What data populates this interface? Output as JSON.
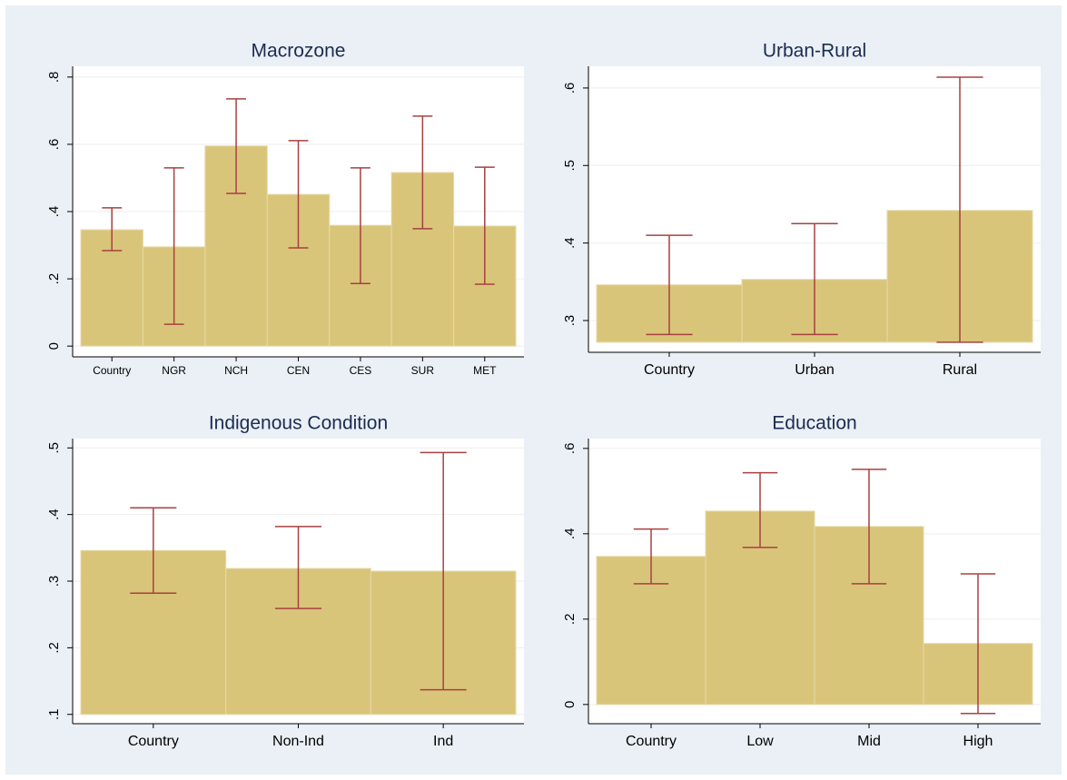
{
  "chart_data": [
    {
      "type": "bar",
      "title": "Macrozone",
      "categories": [
        "Country",
        "NGR",
        "NCH",
        "CEN",
        "CES",
        "SUR",
        "MET"
      ],
      "values": [
        0.346,
        0.295,
        0.595,
        0.451,
        0.359,
        0.516,
        0.357
      ],
      "ci_low": [
        0.284,
        0.065,
        0.454,
        0.292,
        0.186,
        0.349,
        0.184
      ],
      "ci_high": [
        0.411,
        0.53,
        0.735,
        0.611,
        0.53,
        0.684,
        0.532
      ],
      "bar_base": 0,
      "color": "#d9c57a",
      "error_color": "#a84040",
      "ylim": [
        -0.032,
        0.832
      ],
      "yticks": [
        0,
        {
          "value": 0.2,
          "label": ".2"
        },
        {
          "value": 0.4,
          "label": ".4"
        },
        {
          "value": 0.6,
          "label": ".6"
        },
        {
          "value": 0.8,
          "label": ".8"
        }
      ],
      "grid": true
    },
    {
      "type": "bar",
      "title": "Urban-Rural",
      "categories": [
        "Country",
        "Urban",
        "Rural"
      ],
      "values": [
        0.346,
        0.353,
        0.442
      ],
      "ci_low": [
        0.282,
        0.282,
        0.272
      ],
      "ci_high": [
        0.41,
        0.425,
        0.614
      ],
      "bar_base": 0.272,
      "color": "#d9c57a",
      "error_color": "#a84040",
      "ylim": [
        0.259,
        0.628
      ],
      "yticks": [
        {
          "value": 0.3,
          "label": ".3"
        },
        {
          "value": 0.4,
          "label": ".4"
        },
        {
          "value": 0.5,
          "label": ".5"
        },
        {
          "value": 0.6,
          "label": ".6"
        }
      ],
      "grid": true
    },
    {
      "type": "bar",
      "title": "Indigenous Condition",
      "categories": [
        "Country",
        "Non-Ind",
        "Ind"
      ],
      "values": [
        0.346,
        0.319,
        0.315
      ],
      "ci_low": [
        0.282,
        0.259,
        0.137
      ],
      "ci_high": [
        0.41,
        0.382,
        0.493
      ],
      "bar_base": 0.1,
      "color": "#d9c57a",
      "error_color": "#a84040",
      "ylim": [
        0.086,
        0.514
      ],
      "yticks": [
        {
          "value": 0.1,
          "label": ".1"
        },
        {
          "value": 0.2,
          "label": ".2"
        },
        {
          "value": 0.3,
          "label": ".3"
        },
        {
          "value": 0.4,
          "label": ".4"
        },
        {
          "value": 0.5,
          "label": ".5"
        }
      ],
      "grid": true
    },
    {
      "type": "bar",
      "title": "Education",
      "categories": [
        "Country",
        "Low",
        "Mid",
        "High"
      ],
      "values": [
        0.347,
        0.453,
        0.417,
        0.143
      ],
      "ci_low": [
        0.283,
        0.368,
        0.283,
        -0.021
      ],
      "ci_high": [
        0.411,
        0.543,
        0.551,
        0.306
      ],
      "bar_base": 0,
      "color": "#d9c57a",
      "error_color": "#a84040",
      "ylim": [
        -0.045,
        0.623
      ],
      "yticks": [
        0,
        {
          "value": 0.2,
          "label": ".2"
        },
        {
          "value": 0.4,
          "label": ".4"
        },
        {
          "value": 0.6,
          "label": ".6"
        }
      ],
      "grid": true
    }
  ]
}
